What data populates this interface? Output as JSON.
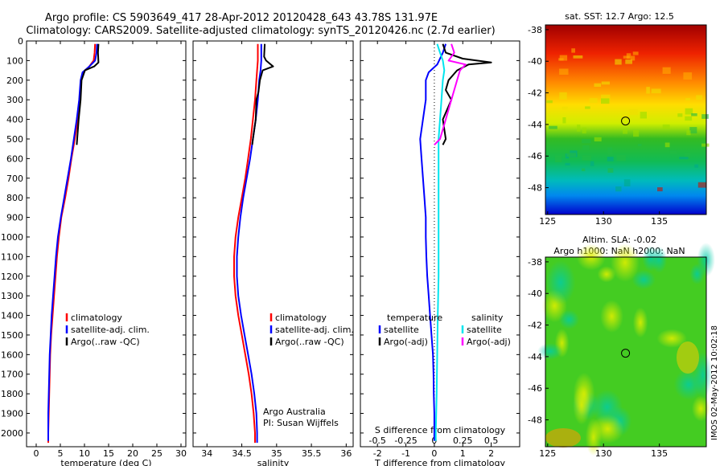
{
  "header": {
    "line1": "Argo profile: CS 5903649_417 28-Apr-2012 20120428_643 43.78S 131.97E",
    "line2": "Climatology: CARS2009. Satellite-adjusted climatology: synTS_20120426.nc (2.7d earlier)"
  },
  "colors": {
    "climatology": "#ff0000",
    "satellite": "#0000ff",
    "argo": "#000000",
    "sat_salinity": "#00e5ee",
    "argo_salinity": "#ff00ff"
  },
  "chart_data": [
    {
      "type": "line",
      "id": "temperature",
      "xlabel": "temperature (deg C)",
      "xlim": [
        -2,
        31
      ],
      "xticks": [
        0,
        5,
        10,
        15,
        20,
        25,
        30
      ],
      "ylim": [
        0,
        2070
      ],
      "yticks": [
        0,
        100,
        200,
        300,
        400,
        500,
        600,
        700,
        800,
        900,
        1000,
        1100,
        1200,
        1300,
        1400,
        1500,
        1600,
        1700,
        1800,
        1900,
        2000
      ],
      "legend": [
        "climatology",
        "satellite-adj. clim.",
        "Argo(..raw -QC)"
      ],
      "series": [
        {
          "name": "climatology",
          "color": "#ff0000",
          "points": [
            [
              12.2,
              15
            ],
            [
              12.1,
              60
            ],
            [
              11.9,
              100
            ],
            [
              11.0,
              130
            ],
            [
              9.7,
              160
            ],
            [
              9.3,
              200
            ],
            [
              9.0,
              300
            ],
            [
              8.6,
              400
            ],
            [
              8.0,
              500
            ],
            [
              7.3,
              600
            ],
            [
              6.7,
              700
            ],
            [
              6.0,
              800
            ],
            [
              5.2,
              900
            ],
            [
              4.7,
              1000
            ],
            [
              4.3,
              1100
            ],
            [
              4.0,
              1200
            ],
            [
              3.7,
              1300
            ],
            [
              3.4,
              1400
            ],
            [
              3.1,
              1500
            ],
            [
              2.9,
              1600
            ],
            [
              2.8,
              1700
            ],
            [
              2.7,
              1800
            ],
            [
              2.6,
              1900
            ],
            [
              2.5,
              2000
            ],
            [
              2.5,
              2050
            ]
          ]
        },
        {
          "name": "satellite-adj. clim.",
          "color": "#0000ff",
          "points": [
            [
              12.6,
              15
            ],
            [
              12.5,
              60
            ],
            [
              12.2,
              100
            ],
            [
              10.8,
              135
            ],
            [
              9.6,
              160
            ],
            [
              9.2,
              200
            ],
            [
              8.9,
              300
            ],
            [
              8.4,
              400
            ],
            [
              7.8,
              500
            ],
            [
              7.2,
              600
            ],
            [
              6.5,
              700
            ],
            [
              5.8,
              800
            ],
            [
              5.1,
              900
            ],
            [
              4.5,
              1000
            ],
            [
              4.1,
              1100
            ],
            [
              3.8,
              1200
            ],
            [
              3.5,
              1300
            ],
            [
              3.2,
              1400
            ],
            [
              3.0,
              1500
            ],
            [
              2.8,
              1600
            ],
            [
              2.7,
              1700
            ],
            [
              2.6,
              1800
            ],
            [
              2.5,
              1900
            ],
            [
              2.5,
              2000
            ],
            [
              2.5,
              2040
            ]
          ]
        },
        {
          "name": "Argo(..raw -QC)",
          "color": "#000000",
          "points": [
            [
              12.9,
              15
            ],
            [
              12.8,
              60
            ],
            [
              12.9,
              110
            ],
            [
              12.0,
              130
            ],
            [
              10.1,
              150
            ],
            [
              9.4,
              200
            ],
            [
              9.2,
              300
            ],
            [
              8.8,
              400
            ],
            [
              8.4,
              530
            ]
          ]
        }
      ]
    },
    {
      "type": "line",
      "id": "salinity",
      "xlabel": "salinity",
      "xlim": [
        33.8,
        36.1
      ],
      "xticks": [
        34,
        34.5,
        35,
        35.5,
        36
      ],
      "ylim": [
        0,
        2070
      ],
      "legend": [
        "climatology",
        "satellite-adj. clim.",
        "Argo(..raw -QC)"
      ],
      "annotation": [
        "Argo Australia",
        "PI: Susan Wijffels"
      ],
      "series": [
        {
          "name": "climatology",
          "color": "#ff0000",
          "points": [
            [
              34.73,
              15
            ],
            [
              34.73,
              100
            ],
            [
              34.71,
              200
            ],
            [
              34.69,
              300
            ],
            [
              34.66,
              400
            ],
            [
              34.63,
              500
            ],
            [
              34.59,
              600
            ],
            [
              34.55,
              700
            ],
            [
              34.5,
              800
            ],
            [
              34.45,
              900
            ],
            [
              34.41,
              1000
            ],
            [
              34.39,
              1100
            ],
            [
              34.39,
              1200
            ],
            [
              34.41,
              1300
            ],
            [
              34.45,
              1400
            ],
            [
              34.5,
              1500
            ],
            [
              34.55,
              1600
            ],
            [
              34.6,
              1700
            ],
            [
              34.64,
              1800
            ],
            [
              34.67,
              1900
            ],
            [
              34.69,
              2000
            ],
            [
              34.69,
              2050
            ]
          ]
        },
        {
          "name": "satellite-adj. clim.",
          "color": "#0000ff",
          "points": [
            [
              34.78,
              15
            ],
            [
              34.78,
              100
            ],
            [
              34.77,
              150
            ],
            [
              34.75,
              200
            ],
            [
              34.73,
              300
            ],
            [
              34.7,
              400
            ],
            [
              34.66,
              500
            ],
            [
              34.62,
              600
            ],
            [
              34.57,
              700
            ],
            [
              34.52,
              800
            ],
            [
              34.48,
              900
            ],
            [
              34.45,
              1000
            ],
            [
              34.43,
              1100
            ],
            [
              34.43,
              1200
            ],
            [
              34.45,
              1300
            ],
            [
              34.49,
              1400
            ],
            [
              34.54,
              1500
            ],
            [
              34.59,
              1600
            ],
            [
              34.64,
              1700
            ],
            [
              34.68,
              1800
            ],
            [
              34.71,
              1900
            ],
            [
              34.72,
              2000
            ],
            [
              34.72,
              2050
            ]
          ]
        },
        {
          "name": "Argo(..raw -QC)",
          "color": "#000000",
          "points": [
            [
              34.83,
              15
            ],
            [
              34.82,
              80
            ],
            [
              34.85,
              100
            ],
            [
              34.95,
              130
            ],
            [
              34.8,
              150
            ],
            [
              34.76,
              200
            ],
            [
              34.74,
              260
            ],
            [
              34.71,
              300
            ],
            [
              34.7,
              400
            ],
            [
              34.66,
              500
            ],
            [
              34.65,
              530
            ]
          ]
        }
      ]
    },
    {
      "type": "line",
      "id": "difference",
      "xlabel": "T difference from climatology",
      "xlabel_top": "S difference from climatology",
      "xlim": [
        -2.6,
        3.0
      ],
      "xticks": [
        -2,
        -1,
        0,
        1,
        2
      ],
      "xticks_top": [
        -0.5,
        -0.25,
        0,
        0.25,
        0.5
      ],
      "xticks_top_labels": [
        "-0.5",
        "-0.25",
        "0",
        "0.25",
        "0.5"
      ],
      "ylim": [
        0,
        2070
      ],
      "legend_t": [
        "temperature",
        "satellite",
        "Argo(-adj)"
      ],
      "legend_s": [
        "salinity",
        "satellite",
        "Argo(-adj)"
      ],
      "series": [
        {
          "name": "satellite",
          "color": "#0000ff",
          "points": [
            [
              0.4,
              15
            ],
            [
              0.3,
              60
            ],
            [
              0.1,
              120
            ],
            [
              -0.2,
              160
            ],
            [
              -0.3,
              200
            ],
            [
              -0.3,
              300
            ],
            [
              -0.4,
              400
            ],
            [
              -0.5,
              500
            ],
            [
              -0.45,
              600
            ],
            [
              -0.4,
              700
            ],
            [
              -0.35,
              800
            ],
            [
              -0.3,
              900
            ],
            [
              -0.3,
              1000
            ],
            [
              -0.28,
              1100
            ],
            [
              -0.25,
              1200
            ],
            [
              -0.2,
              1300
            ],
            [
              -0.15,
              1400
            ],
            [
              -0.1,
              1500
            ],
            [
              -0.05,
              1600
            ],
            [
              -0.03,
              1700
            ],
            [
              -0.02,
              1800
            ],
            [
              0,
              1900
            ],
            [
              0,
              2000
            ],
            [
              0,
              2040
            ]
          ]
        },
        {
          "name": "Argo(-adj)",
          "color": "#000000",
          "points": [
            [
              0.3,
              15
            ],
            [
              0.4,
              60
            ],
            [
              1.0,
              90
            ],
            [
              2.0,
              110
            ],
            [
              1.2,
              120
            ],
            [
              0.8,
              150
            ],
            [
              0.5,
              200
            ],
            [
              0.4,
              250
            ],
            [
              0.6,
              300
            ],
            [
              0.3,
              400
            ],
            [
              0.4,
              500
            ],
            [
              0.3,
              530
            ]
          ]
        },
        {
          "name": "satellite salinity",
          "color": "#00e5ee",
          "points": [
            [
              0.1,
              15
            ],
            [
              0.2,
              60
            ],
            [
              0.3,
              100
            ],
            [
              0.35,
              150
            ],
            [
              0.3,
              200
            ],
            [
              0.25,
              300
            ],
            [
              0.2,
              400
            ],
            [
              0.15,
              500
            ],
            [
              0.15,
              600
            ],
            [
              0.15,
              800
            ],
            [
              0.15,
              1000
            ],
            [
              0.15,
              1200
            ],
            [
              0.12,
              1400
            ],
            [
              0.1,
              1600
            ],
            [
              0.08,
              1800
            ],
            [
              0.05,
              2000
            ],
            [
              0.05,
              2040
            ]
          ]
        },
        {
          "name": "Argo salinity",
          "color": "#ff00ff",
          "points": [
            [
              0.6,
              15
            ],
            [
              0.7,
              60
            ],
            [
              0.5,
              100
            ],
            [
              1.1,
              120
            ],
            [
              0.9,
              150
            ],
            [
              0.8,
              200
            ],
            [
              0.6,
              300
            ],
            [
              0.4,
              400
            ],
            [
              0.2,
              500
            ],
            [
              0,
              530
            ]
          ]
        }
      ]
    }
  ],
  "maps": [
    {
      "id": "sst",
      "title": "sat. SST: 12.7 Argo: 12.5",
      "xticks": [
        125,
        130,
        135
      ],
      "yticks": [
        -38,
        -40,
        -42,
        -44,
        -46,
        -48
      ],
      "xlim": [
        124.8,
        139.2
      ],
      "ylim": [
        -49.7,
        -37.7
      ],
      "argo_lon": 131.97,
      "argo_lat": -43.78
    },
    {
      "id": "sla",
      "title_line1": "Altim. SLA: -0.02",
      "title_line2": "Argo h1000: NaN h2000: NaN",
      "xticks": [
        125,
        130,
        135
      ],
      "yticks": [
        -38,
        -40,
        -42,
        -44,
        -46,
        -48
      ],
      "xlim": [
        124.8,
        139.2
      ],
      "ylim": [
        -49.7,
        -37.7
      ],
      "argo_lon": 131.97,
      "argo_lat": -43.78
    }
  ],
  "side_label": "IMOS 02-May-2012 10:02:18"
}
